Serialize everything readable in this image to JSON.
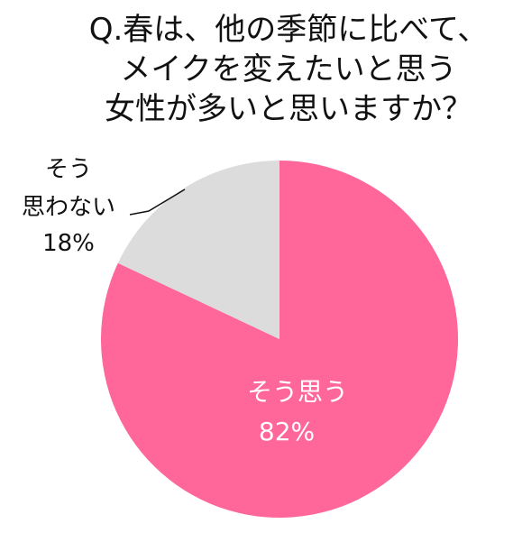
{
  "chart_data": {
    "type": "pie",
    "title_lines": [
      "Q.春は、他の季節に比べて、",
      "メイクを変えたいと思う",
      "女性が多いと思いますか？"
    ],
    "slices": [
      {
        "name": "そう思う",
        "label_lines": [
          "そう思う",
          "82%"
        ],
        "value": 82,
        "color": "#FF6699"
      },
      {
        "name": "そう思わない",
        "label_lines": [
          "そう",
          "思わない",
          "18%"
        ],
        "value": 18,
        "color": "#DCDCDC"
      }
    ],
    "start": "12 o'clock",
    "direction": "clockwise",
    "legend": "none"
  }
}
